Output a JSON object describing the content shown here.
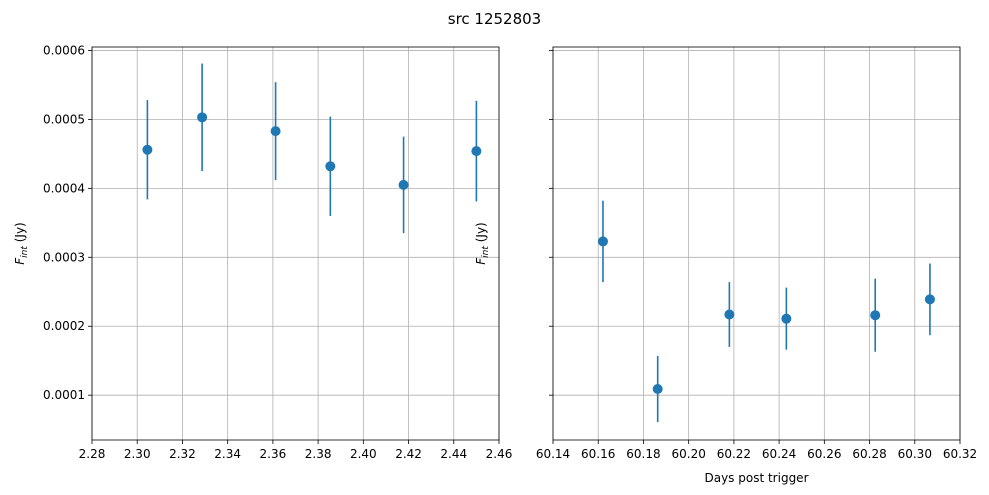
{
  "suptitle": "src 1252803",
  "chart_data": [
    {
      "type": "scatter",
      "errorbars": true,
      "ylabel_main": "F",
      "ylabel_sub": "int",
      "ylabel_unit": " (Jy)",
      "xlabel": "",
      "xlim": [
        2.28,
        2.46
      ],
      "ylim": [
        3.5e-05,
        0.000605
      ],
      "xticks": [
        "2.28",
        "2.30",
        "2.32",
        "2.34",
        "2.36",
        "2.38",
        "2.40",
        "2.42",
        "2.44",
        "2.46"
      ],
      "yticks": [
        "0.0001",
        "0.0002",
        "0.0003",
        "0.0004",
        "0.0005",
        "0.0006"
      ],
      "grid": true,
      "color": "#1f77b4",
      "points": [
        {
          "x": 2.3045,
          "y": 0.000456,
          "err": 7.2e-05
        },
        {
          "x": 2.3287,
          "y": 0.000503,
          "err": 7.8e-05
        },
        {
          "x": 2.3612,
          "y": 0.000483,
          "err": 7.1e-05
        },
        {
          "x": 2.3854,
          "y": 0.000432,
          "err": 7.2e-05
        },
        {
          "x": 2.4178,
          "y": 0.000405,
          "err": 7e-05
        },
        {
          "x": 2.45,
          "y": 0.000454,
          "err": 7.3e-05
        }
      ]
    },
    {
      "type": "scatter",
      "errorbars": true,
      "ylabel_main": "F",
      "ylabel_sub": "int",
      "ylabel_unit": " (Jy)",
      "xlabel": "Days post trigger",
      "xlim": [
        60.14,
        60.32
      ],
      "ylim": [
        3.5e-05,
        0.000605
      ],
      "xticks": [
        "60.14",
        "60.16",
        "60.18",
        "60.20",
        "60.22",
        "60.24",
        "60.26",
        "60.28",
        "60.30",
        "60.32"
      ],
      "yticks": [
        "",
        "",
        "",
        "",
        "",
        ""
      ],
      "grid": true,
      "color": "#1f77b4",
      "points": [
        {
          "x": 60.1621,
          "y": 0.000323,
          "err": 5.9e-05
        },
        {
          "x": 60.1863,
          "y": 0.000109,
          "err": 4.8e-05
        },
        {
          "x": 60.218,
          "y": 0.000217,
          "err": 4.7e-05
        },
        {
          "x": 60.2432,
          "y": 0.000211,
          "err": 4.5e-05
        },
        {
          "x": 60.2825,
          "y": 0.000216,
          "err": 5.3e-05
        },
        {
          "x": 60.3067,
          "y": 0.000239,
          "err": 5.2e-05
        }
      ]
    }
  ]
}
